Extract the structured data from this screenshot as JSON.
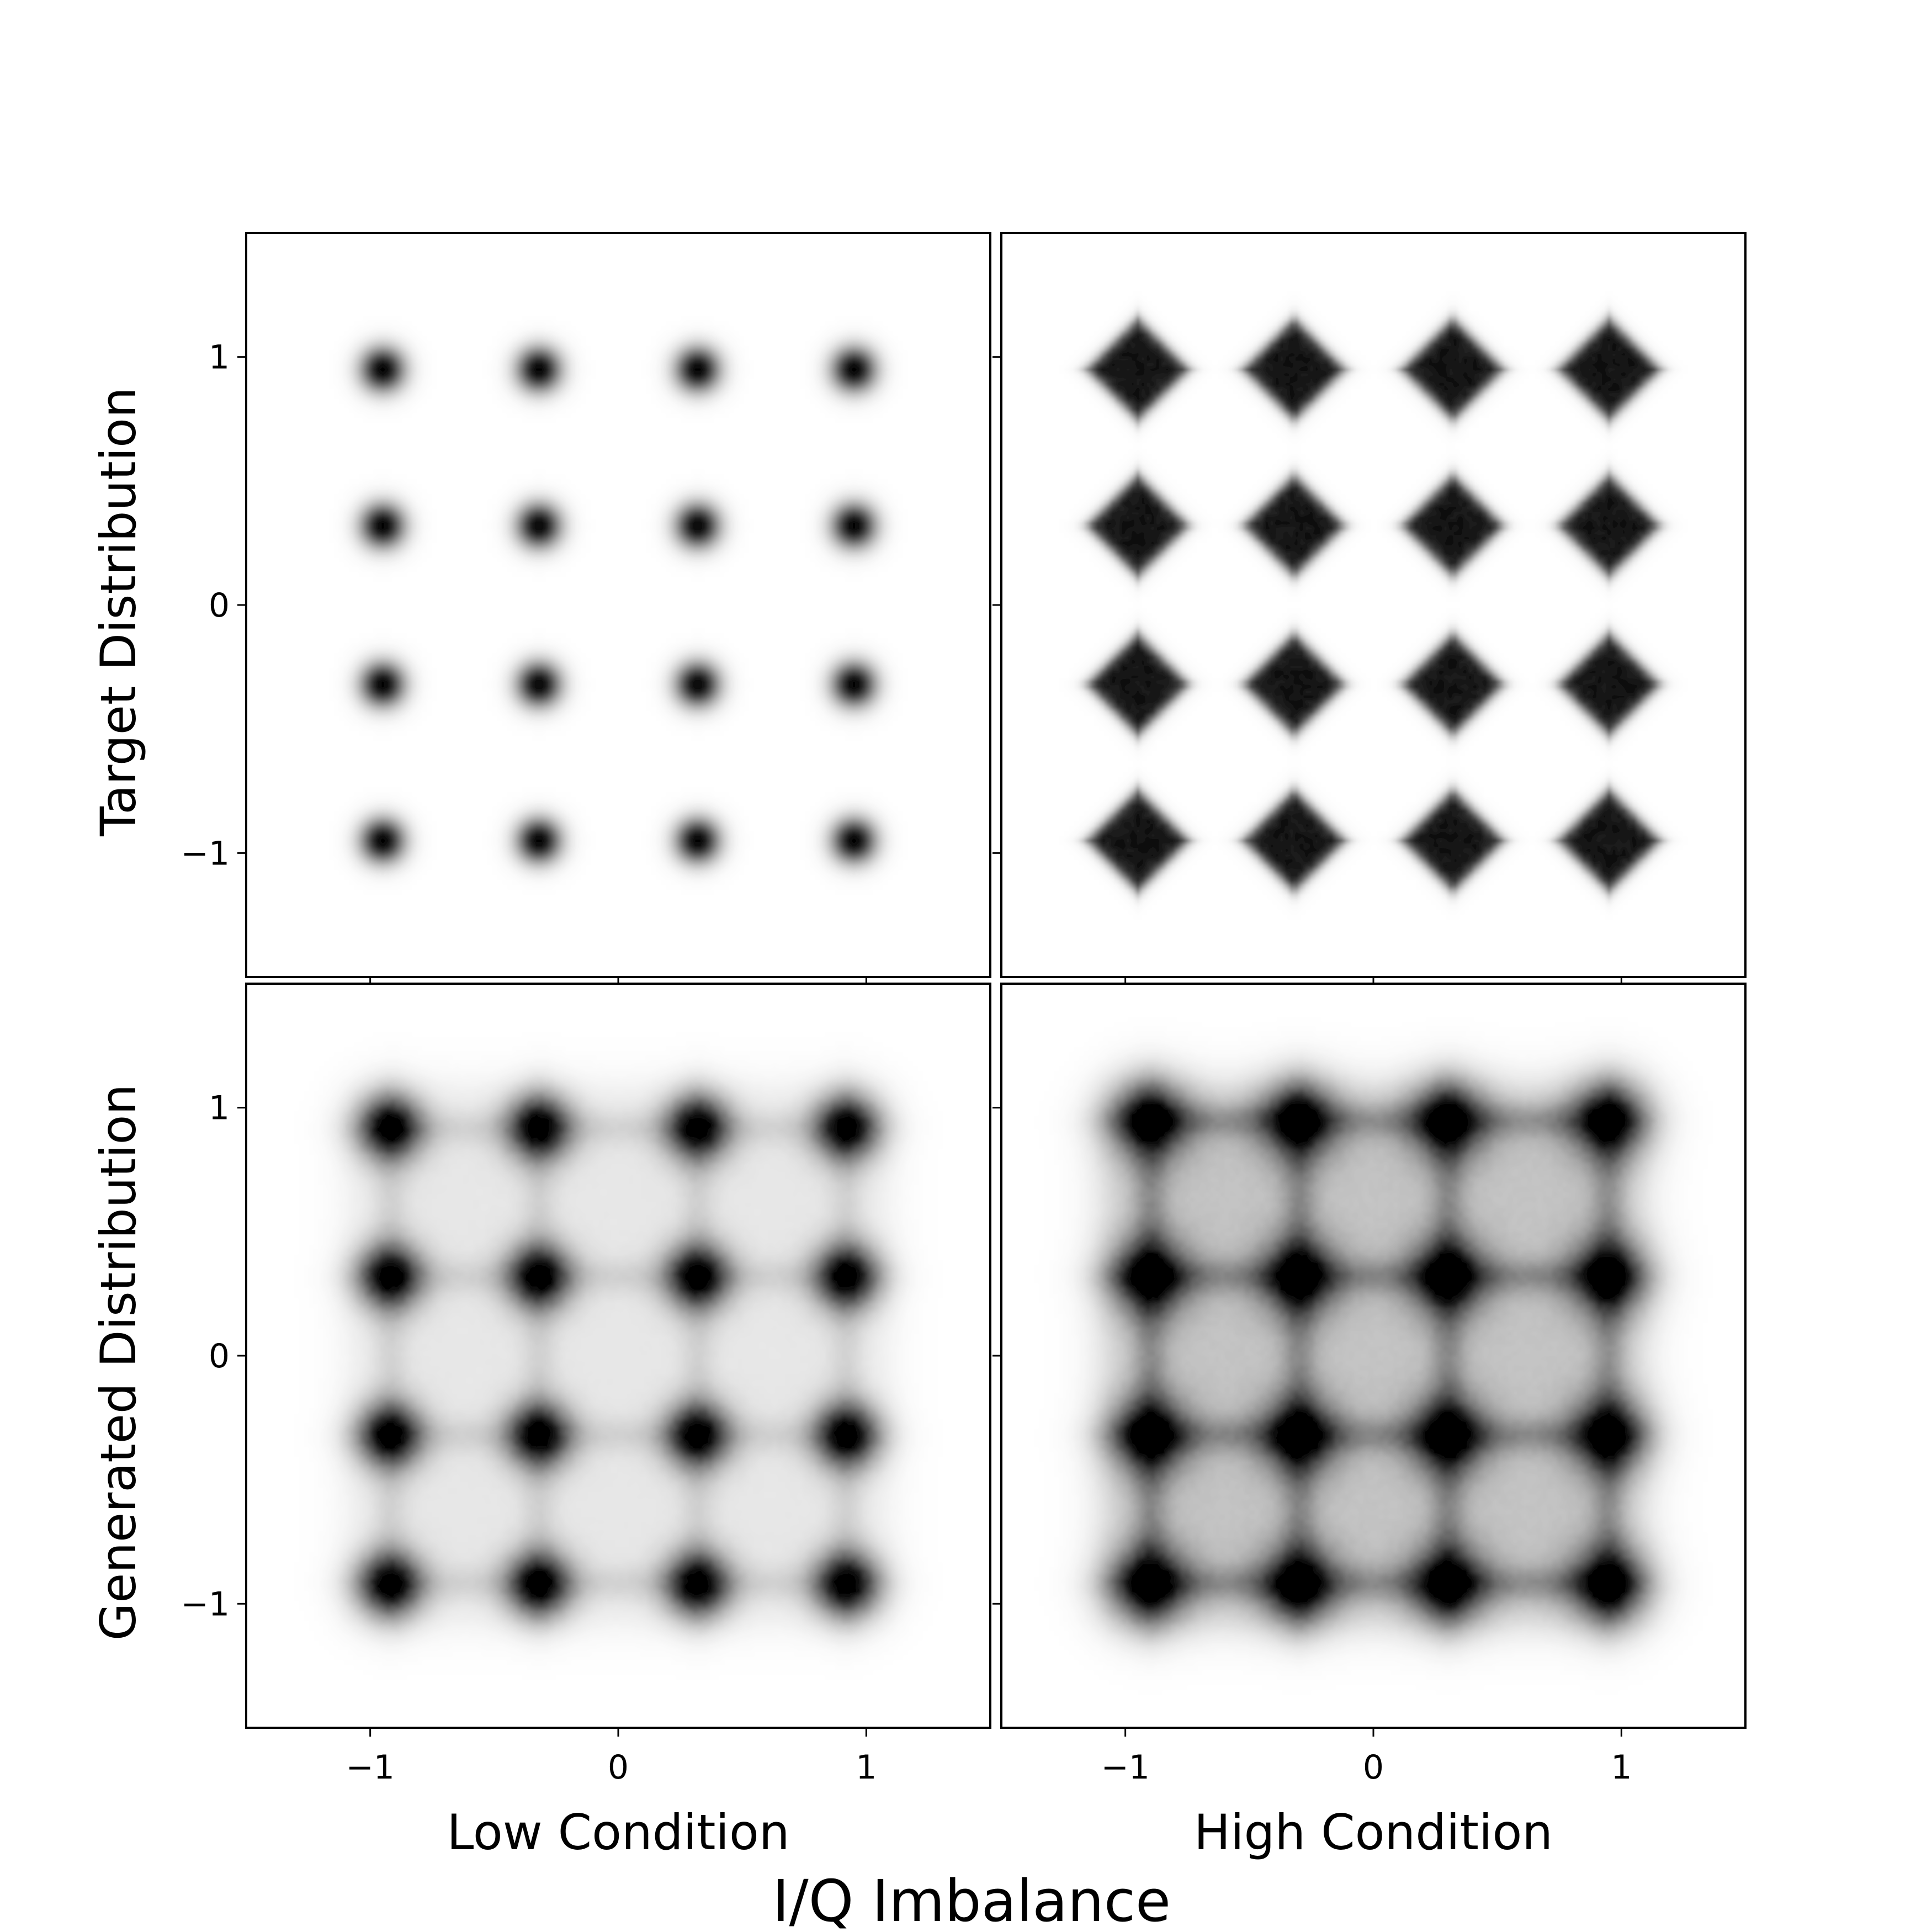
{
  "chart_data": {
    "type": "heatmap",
    "title": "",
    "xlabel": "I/Q Imbalance",
    "xlim": [
      -1.5,
      1.5
    ],
    "ylim": [
      -1.5,
      1.5
    ],
    "xticks": [
      -1,
      0,
      1
    ],
    "yticks": [
      -1,
      0,
      1
    ],
    "grid": false,
    "colormap": "Greys",
    "columns": [
      "Low Condition",
      "High Condition"
    ],
    "rows": [
      "Target Distribution",
      "Generated Distribution"
    ],
    "panels": [
      {
        "row": "Target Distribution",
        "column": "Low Condition",
        "constellation": "16-QAM",
        "points_x": [
          -0.95,
          -0.32,
          0.32,
          0.95
        ],
        "points_y": [
          -0.95,
          -0.32,
          0.32,
          0.95
        ],
        "cluster_shape": "round",
        "cluster_spread": 0.06,
        "peak_intensity": 1.0,
        "background_haze": 0.0
      },
      {
        "row": "Target Distribution",
        "column": "High Condition",
        "constellation": "16-QAM",
        "points_x": [
          -0.95,
          -0.32,
          0.32,
          0.95
        ],
        "points_y": [
          -0.95,
          -0.32,
          0.32,
          0.95
        ],
        "cluster_shape": "diamond",
        "cluster_spread": 0.2,
        "peak_intensity": 1.0,
        "background_haze": 0.0
      },
      {
        "row": "Generated Distribution",
        "column": "Low Condition",
        "constellation": "16-QAM",
        "points_x": [
          -0.92,
          -0.32,
          0.32,
          0.92
        ],
        "points_y": [
          -0.92,
          -0.32,
          0.32,
          0.92
        ],
        "cluster_shape": "round",
        "cluster_spread": 0.09,
        "peak_intensity": 0.92,
        "background_haze": 0.08
      },
      {
        "row": "Generated Distribution",
        "column": "High Condition",
        "constellation": "16-QAM",
        "points_x": [
          -0.9,
          -0.3,
          0.3,
          0.95
        ],
        "points_y": [
          -0.92,
          -0.32,
          0.32,
          0.95
        ],
        "cluster_shape": "round",
        "cluster_spread": 0.11,
        "peak_intensity": 0.75,
        "background_haze": 0.2
      }
    ]
  },
  "colors": {
    "ink": "#000000",
    "background": "#ffffff"
  }
}
